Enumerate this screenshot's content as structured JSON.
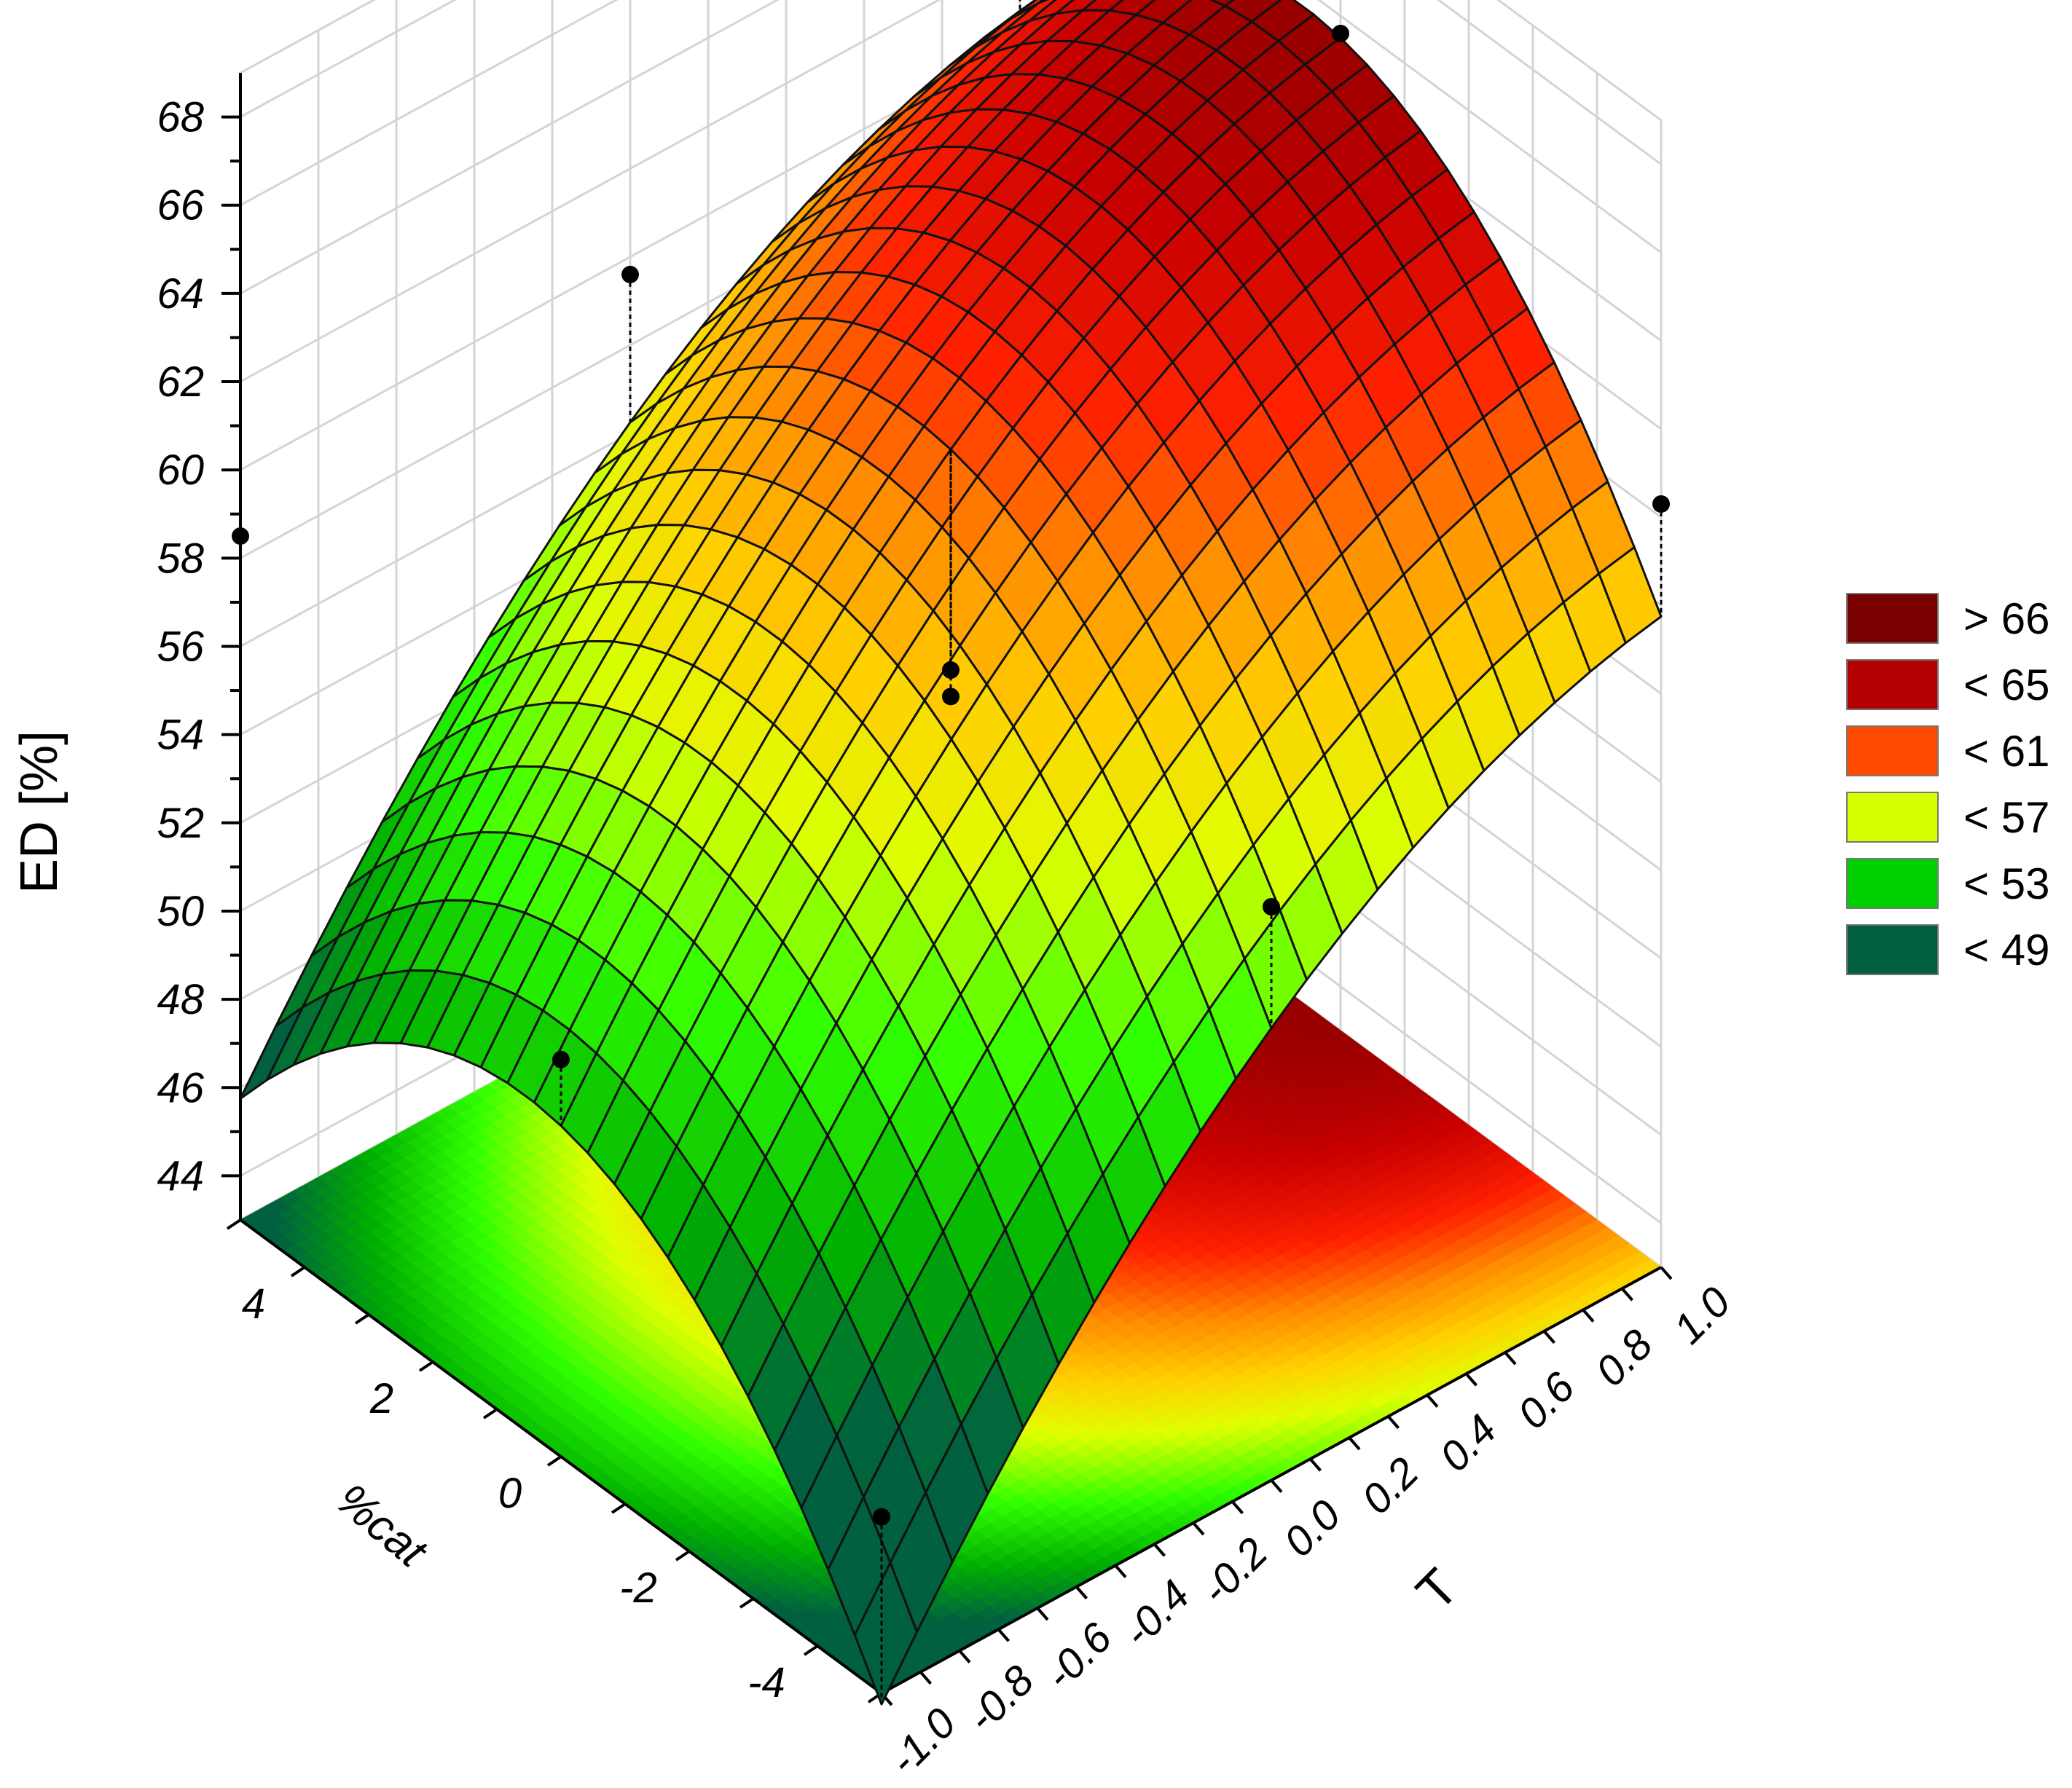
{
  "chart_data": {
    "type": "surface3d",
    "title": "",
    "zlabel": "ED [%]",
    "xlabel": "T",
    "ylabel": "%cat",
    "z_ticks": [
      "44",
      "46",
      "48",
      "50",
      "52",
      "54",
      "56",
      "58",
      "60",
      "62",
      "64",
      "66",
      "68"
    ],
    "x_ticks": [
      "-1.0",
      "-0.8",
      "-0.6",
      "-0.4",
      "-0.2",
      "0.0",
      "0.2",
      "0.4",
      "0.6",
      "0.8",
      "1.0"
    ],
    "y_ticks": [
      "4",
      "2",
      "0",
      "-2",
      "-4"
    ],
    "x_range": [
      -1.0,
      1.0
    ],
    "y_range": [
      -5,
      5
    ],
    "z_range": [
      43,
      69
    ],
    "grid": true,
    "legend_position": "right",
    "legend": [
      {
        "label": "> 66",
        "color": "#7a0000"
      },
      {
        "label": "< 65",
        "color": "#b30000"
      },
      {
        "label": "< 61",
        "color": "#ff4a00"
      },
      {
        "label": "< 57",
        "color": "#d6ff00"
      },
      {
        "label": "< 53",
        "color": "#00d000"
      },
      {
        "label": "< 49",
        "color": "#006040"
      }
    ],
    "color_stops": [
      {
        "z": 47,
        "color": "#006040"
      },
      {
        "z": 50,
        "color": "#00b000"
      },
      {
        "z": 53,
        "color": "#30ff00"
      },
      {
        "z": 56,
        "color": "#e0ff00"
      },
      {
        "z": 58,
        "color": "#ffd000"
      },
      {
        "z": 60,
        "color": "#ff8c00"
      },
      {
        "z": 62,
        "color": "#ff2000"
      },
      {
        "z": 64,
        "color": "#c80000"
      },
      {
        "z": 66,
        "color": "#8a0000"
      },
      {
        "z": 68,
        "color": "#6a0000"
      }
    ],
    "surface_model": "ED = 61 + 7.5*T - 3*T^2 + 0.3*cat - 0.25*cat^2",
    "observed_points": [
      {
        "T": -1.0,
        "cat": 5,
        "ED": 58.5
      },
      {
        "T": -1.0,
        "cat": 0,
        "ED": 52
      },
      {
        "T": 0.0,
        "cat": 0,
        "ED": 56
      },
      {
        "T": 0.0,
        "cat": 0,
        "ED": 55.4
      },
      {
        "T": 1.0,
        "cat": 5,
        "ED": 67.6
      },
      {
        "T": 1.0,
        "cat": 0,
        "ED": 65.6
      },
      {
        "T": 1.0,
        "cat": -5,
        "ED": 60.3
      },
      {
        "T": 0.0,
        "cat": -5,
        "ED": 56
      },
      {
        "T": -1.0,
        "cat": -5,
        "ED": 47
      },
      {
        "T": 0.0,
        "cat": 5,
        "ED": 59.6
      }
    ]
  }
}
